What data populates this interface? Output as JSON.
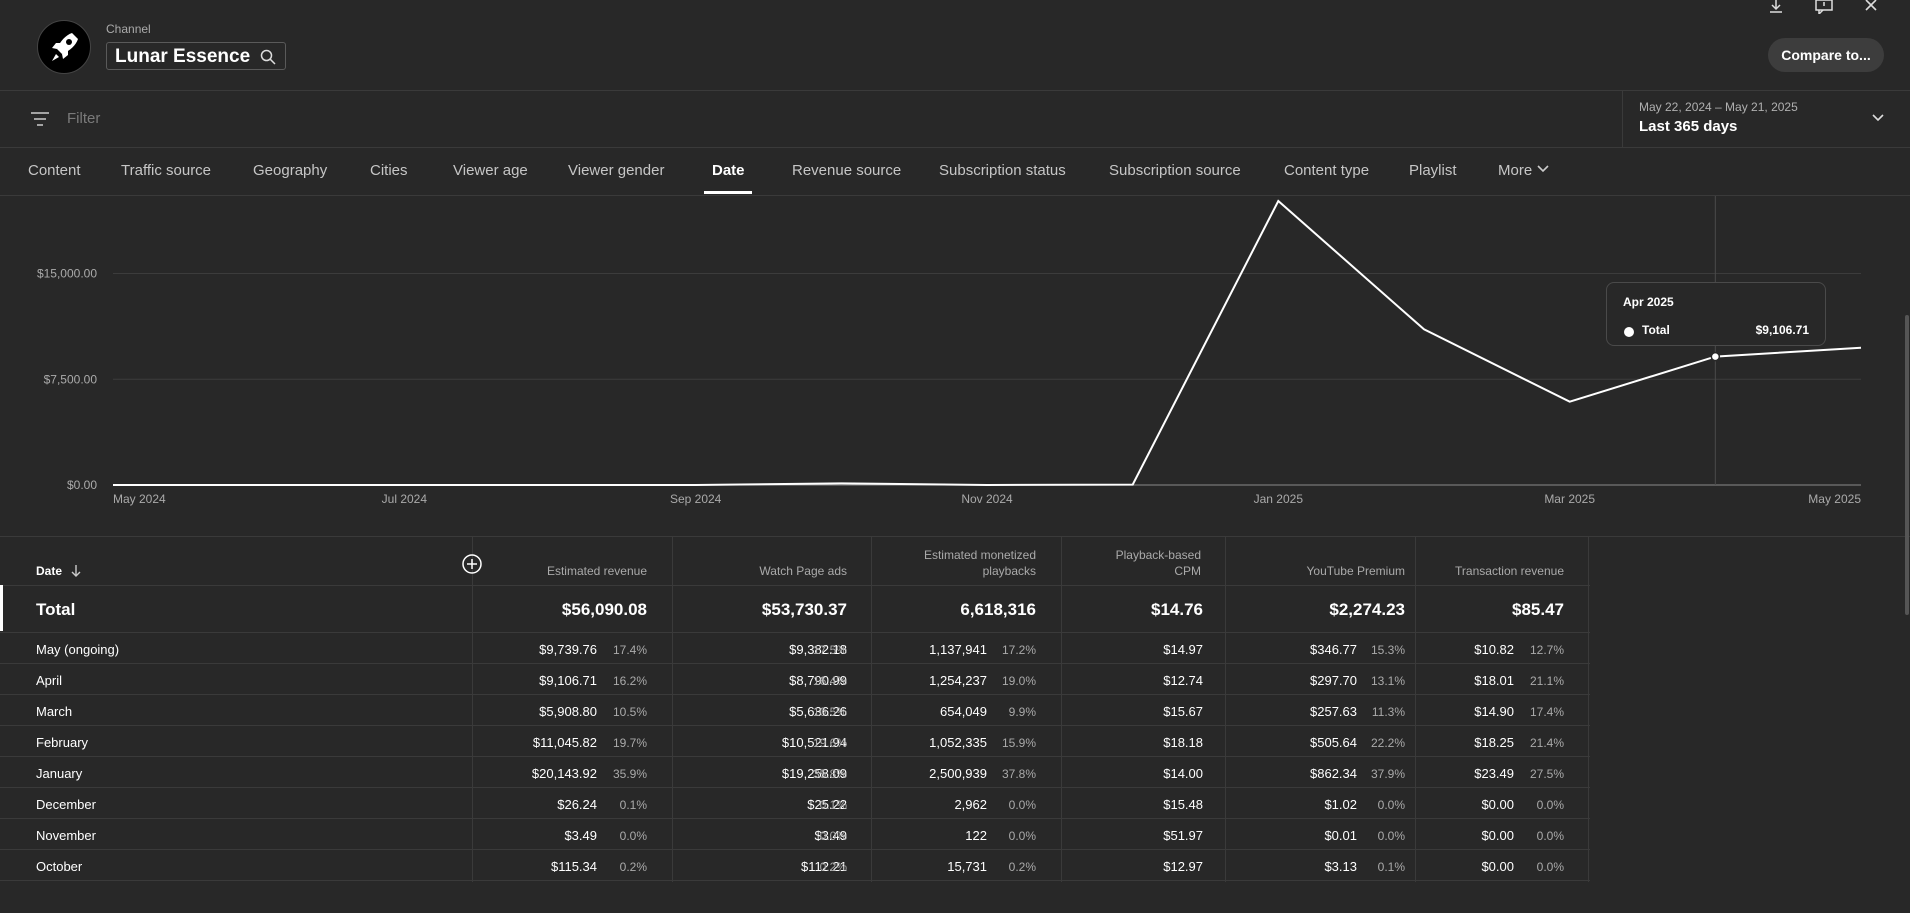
{
  "header": {
    "channel_label": "Channel",
    "channel_name": "Lunar Essence",
    "compare_label": "Compare to...",
    "icons": [
      "download-icon",
      "feedback-icon",
      "close-icon",
      "rocket-avatar-icon",
      "search-icon"
    ]
  },
  "filter": {
    "placeholder": "Filter",
    "icon": "filter-icon"
  },
  "date_selector": {
    "range": "May 22, 2024 – May 21, 2025",
    "period": "Last 365 days"
  },
  "tabs": [
    {
      "label": "Content",
      "active": false
    },
    {
      "label": "Traffic source",
      "active": false
    },
    {
      "label": "Geography",
      "active": false
    },
    {
      "label": "Cities",
      "active": false
    },
    {
      "label": "Viewer age",
      "active": false
    },
    {
      "label": "Viewer gender",
      "active": false
    },
    {
      "label": "Date",
      "active": true
    },
    {
      "label": "Revenue source",
      "active": false
    },
    {
      "label": "Subscription status",
      "active": false
    },
    {
      "label": "Subscription source",
      "active": false
    },
    {
      "label": "Content type",
      "active": false
    },
    {
      "label": "Playlist",
      "active": false
    },
    {
      "label": "More",
      "active": false
    }
  ],
  "chart_data": {
    "type": "line",
    "y_tick_labels": [
      "$0.00",
      "$7,500.00",
      "$15,000.00"
    ],
    "y_ticks": [
      0,
      7500,
      15000
    ],
    "ylim": [
      0,
      20500
    ],
    "x_tick_labels": [
      "May 2024",
      "Jul 2024",
      "Sep 2024",
      "Nov 2024",
      "Jan 2025",
      "Mar 2025",
      "May 2025"
    ],
    "x": [
      "2024-05",
      "2024-06",
      "2024-07",
      "2024-08",
      "2024-09",
      "2024-10",
      "2024-11",
      "2024-12",
      "2025-01",
      "2025-02",
      "2025-03",
      "2025-04",
      "2025-05"
    ],
    "series": [
      {
        "name": "Total",
        "values": [
          0,
          0,
          0,
          0,
          0,
          115.34,
          3.49,
          26.24,
          20143.92,
          11045.82,
          5908.8,
          9106.71,
          9739.76
        ]
      }
    ],
    "grid": true,
    "line_color": "#ffffff",
    "tooltip": {
      "title": "Apr 2025",
      "label": "Total",
      "value": "$9,106.71",
      "index": 11
    }
  },
  "table": {
    "date_header": "Date",
    "columns": [
      {
        "header": [
          "Estimated revenue"
        ],
        "total": "$56,090.08"
      },
      {
        "header": [
          "Watch Page ads"
        ],
        "total": "$53,730.37"
      },
      {
        "header": [
          "Estimated monetized",
          "playbacks"
        ],
        "total": "6,618,316"
      },
      {
        "header": [
          "Playback-based",
          "CPM"
        ],
        "total": "$14.76"
      },
      {
        "header": [
          "YouTube Premium"
        ],
        "total": "$2,274.23"
      },
      {
        "header": [
          "Transaction revenue"
        ],
        "total": "$85.47"
      }
    ],
    "total_label": "Total",
    "rows": [
      {
        "label": "May (ongoing)",
        "cells": [
          [
            "$9,739.76",
            "17.4%"
          ],
          [
            "$9,382.18",
            "17.5%"
          ],
          [
            "1,137,941",
            "17.2%"
          ],
          [
            "$14.97",
            ""
          ],
          [
            "$346.77",
            "15.3%"
          ],
          [
            "$10.82",
            "12.7%"
          ]
        ]
      },
      {
        "label": "April",
        "cells": [
          [
            "$9,106.71",
            "16.2%"
          ],
          [
            "$8,790.99",
            "16.4%"
          ],
          [
            "1,254,237",
            "19.0%"
          ],
          [
            "$12.74",
            ""
          ],
          [
            "$297.70",
            "13.1%"
          ],
          [
            "$18.01",
            "21.1%"
          ]
        ]
      },
      {
        "label": "March",
        "cells": [
          [
            "$5,908.80",
            "10.5%"
          ],
          [
            "$5,636.26",
            "10.5%"
          ],
          [
            "654,049",
            "9.9%"
          ],
          [
            "$15.67",
            ""
          ],
          [
            "$257.63",
            "11.3%"
          ],
          [
            "$14.90",
            "17.4%"
          ]
        ]
      },
      {
        "label": "February",
        "cells": [
          [
            "$11,045.82",
            "19.7%"
          ],
          [
            "$10,521.94",
            "19.6%"
          ],
          [
            "1,052,335",
            "15.9%"
          ],
          [
            "$18.18",
            ""
          ],
          [
            "$505.64",
            "22.2%"
          ],
          [
            "$18.25",
            "21.4%"
          ]
        ]
      },
      {
        "label": "January",
        "cells": [
          [
            "$20,143.92",
            "35.9%"
          ],
          [
            "$19,258.09",
            "35.8%"
          ],
          [
            "2,500,939",
            "37.8%"
          ],
          [
            "$14.00",
            ""
          ],
          [
            "$862.34",
            "37.9%"
          ],
          [
            "$23.49",
            "27.5%"
          ]
        ]
      },
      {
        "label": "December",
        "cells": [
          [
            "$26.24",
            "0.1%"
          ],
          [
            "$25.22",
            "0.1%"
          ],
          [
            "2,962",
            "0.0%"
          ],
          [
            "$15.48",
            ""
          ],
          [
            "$1.02",
            "0.0%"
          ],
          [
            "$0.00",
            "0.0%"
          ]
        ]
      },
      {
        "label": "November",
        "cells": [
          [
            "$3.49",
            "0.0%"
          ],
          [
            "$3.49",
            "0.0%"
          ],
          [
            "122",
            "0.0%"
          ],
          [
            "$51.97",
            ""
          ],
          [
            "$0.01",
            "0.0%"
          ],
          [
            "$0.00",
            "0.0%"
          ]
        ]
      },
      {
        "label": "October",
        "cells": [
          [
            "$115.34",
            "0.2%"
          ],
          [
            "$112.21",
            "0.2%"
          ],
          [
            "15,731",
            "0.2%"
          ],
          [
            "$12.97",
            ""
          ],
          [
            "$3.13",
            "0.1%"
          ],
          [
            "$0.00",
            "0.0%"
          ]
        ]
      }
    ]
  }
}
